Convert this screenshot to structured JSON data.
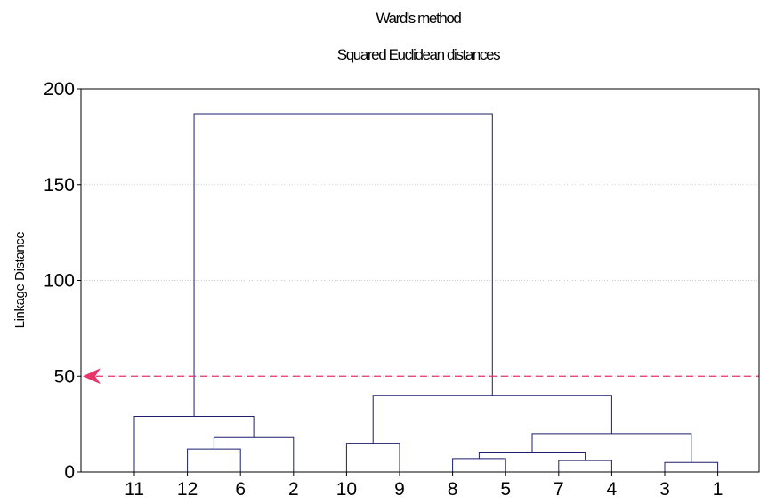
{
  "chart_data": {
    "type": "dendrogram",
    "title": "Ward's method",
    "subtitle": "Squared Euclidean distances",
    "ylabel": "Linkage Distance",
    "xlabel": "",
    "ylim": [
      0,
      200
    ],
    "yticks": [
      0,
      50,
      100,
      150,
      200
    ],
    "grid": "horizontal dotted",
    "leaves": [
      "11",
      "12",
      "6",
      "2",
      "10",
      "9",
      "8",
      "5",
      "7",
      "4",
      "3",
      "1"
    ],
    "merges": [
      {
        "a": "8",
        "b": "5",
        "height": 7
      },
      {
        "a": "7",
        "b": "4",
        "height": 6
      },
      {
        "a": "3",
        "b": "1",
        "height": 5
      },
      {
        "a": "12",
        "b": "6",
        "height": 12
      },
      {
        "a": "10",
        "b": "9",
        "height": 15
      },
      {
        "a": "(12,6)",
        "b": "2",
        "height": 18
      },
      {
        "a": "(8,5)",
        "b": "(7,4)",
        "height": 10
      },
      {
        "a": "(8,5,7,4)",
        "b": "(3,1)",
        "height": 20
      },
      {
        "a": "11",
        "b": "(12,6,2)",
        "height": 29
      },
      {
        "a": "(10,9)",
        "b": "(8,5,7,4,3,1)",
        "height": 40
      },
      {
        "a": "(11,12,6,2)",
        "b": "(10,9,8,5,7,4,3,1)",
        "height": 187
      }
    ],
    "cutoff_line": {
      "value": 50,
      "color": "#e8336b"
    },
    "line_color": "#1a1f6e"
  }
}
